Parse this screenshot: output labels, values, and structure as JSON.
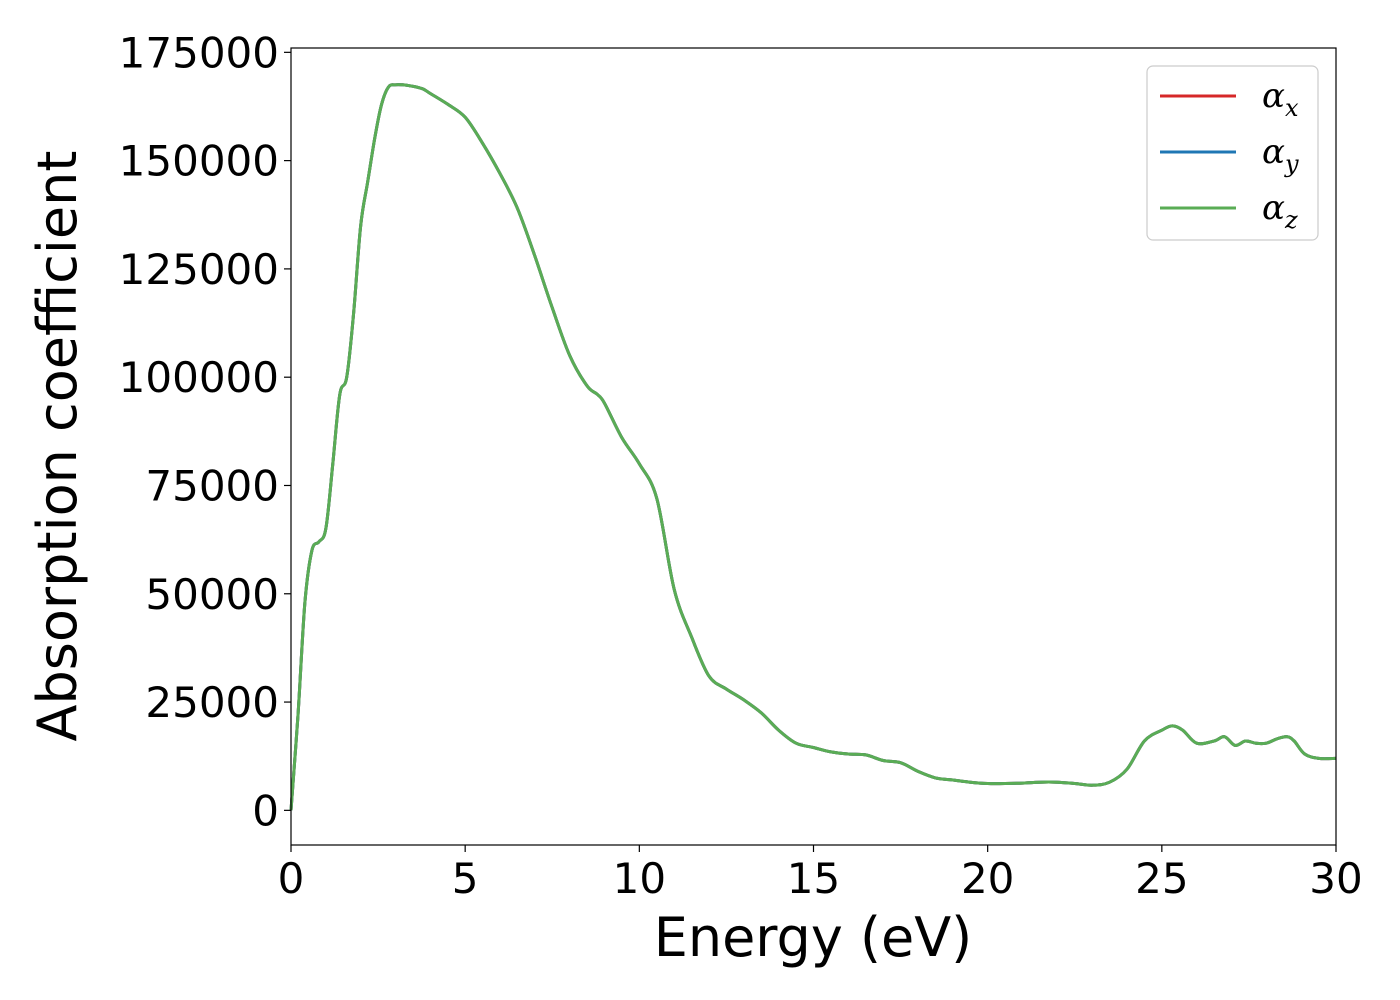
{
  "chart_data": {
    "type": "line",
    "title": "",
    "xlabel": "Energy (eV)",
    "ylabel": "Absorption coefficient",
    "xlim": [
      0,
      30
    ],
    "ylim": [
      -8000,
      176000
    ],
    "xticks": [
      0,
      5,
      10,
      15,
      20,
      25,
      30
    ],
    "xtick_labels": [
      "0",
      "5",
      "10",
      "15",
      "20",
      "25",
      "30"
    ],
    "yticks": [
      0,
      25000,
      50000,
      75000,
      100000,
      125000,
      150000,
      175000
    ],
    "ytick_labels": [
      "0",
      "25000",
      "50000",
      "75000",
      "100000",
      "125000",
      "150000",
      "175000"
    ],
    "grid": false,
    "legend_position": "top-right",
    "x": [
      0,
      0.2,
      0.4,
      0.6,
      0.8,
      1.0,
      1.2,
      1.4,
      1.6,
      1.8,
      2.0,
      2.2,
      2.4,
      2.6,
      2.8,
      3.0,
      3.2,
      3.4,
      3.6,
      3.8,
      4.0,
      4.5,
      5.0,
      5.5,
      6.0,
      6.5,
      7.0,
      7.5,
      8.0,
      8.5,
      8.8,
      9.0,
      9.5,
      10.0,
      10.5,
      11.0,
      11.5,
      12.0,
      12.5,
      13.0,
      13.5,
      14.0,
      14.5,
      15.0,
      15.5,
      16.0,
      16.5,
      17.0,
      17.5,
      18.0,
      18.5,
      19.0,
      19.5,
      20.0,
      20.5,
      21.0,
      21.5,
      22.0,
      22.5,
      23.0,
      23.5,
      24.0,
      24.5,
      25.0,
      25.3,
      25.6,
      26.0,
      26.5,
      26.8,
      27.1,
      27.4,
      27.7,
      28.0,
      28.3,
      28.6,
      28.8,
      29.1,
      29.5,
      30.0
    ],
    "series": [
      {
        "name": "α_x",
        "color": "#d62728",
        "values": [
          0,
          22000,
          48000,
          60000,
          62000,
          65000,
          80000,
          96000,
          100000,
          115000,
          135000,
          145000,
          155000,
          163000,
          167000,
          167500,
          167500,
          167300,
          167000,
          166500,
          165500,
          163000,
          160000,
          154000,
          147000,
          139000,
          128000,
          116000,
          105000,
          98000,
          96000,
          94000,
          86000,
          80000,
          72000,
          51000,
          40000,
          31000,
          28000,
          25500,
          22500,
          18500,
          15500,
          14500,
          13500,
          13000,
          12800,
          11500,
          11000,
          9000,
          7500,
          7000,
          6500,
          6200,
          6200,
          6300,
          6500,
          6500,
          6200,
          5800,
          6500,
          9500,
          16000,
          18500,
          19500,
          18500,
          15500,
          16000,
          17000,
          15000,
          16000,
          15500,
          15500,
          16500,
          17000,
          16000,
          13000,
          12000,
          12000
        ]
      },
      {
        "name": "α_y",
        "color": "#1f77b4",
        "values": [
          0,
          22000,
          48000,
          60000,
          62000,
          65000,
          80000,
          96000,
          100000,
          115000,
          135000,
          145000,
          155000,
          163000,
          167000,
          167500,
          167500,
          167300,
          167000,
          166500,
          165500,
          163000,
          160000,
          154000,
          147000,
          139000,
          128000,
          116000,
          105000,
          98000,
          96000,
          94000,
          86000,
          80000,
          72000,
          51000,
          40000,
          31000,
          28000,
          25500,
          22500,
          18500,
          15500,
          14500,
          13500,
          13000,
          12800,
          11500,
          11000,
          9000,
          7500,
          7000,
          6500,
          6200,
          6200,
          6300,
          6500,
          6500,
          6200,
          5800,
          6500,
          9500,
          16000,
          18500,
          19500,
          18500,
          15500,
          16000,
          17000,
          15000,
          16000,
          15500,
          15500,
          16500,
          17000,
          16000,
          13000,
          12000,
          12000
        ]
      },
      {
        "name": "α_z",
        "color": "#5aac55",
        "values": [
          0,
          22000,
          48000,
          60000,
          62000,
          65000,
          80000,
          96000,
          100000,
          115000,
          135000,
          145000,
          155000,
          163000,
          167000,
          167500,
          167500,
          167300,
          167000,
          166500,
          165500,
          163000,
          160000,
          154000,
          147000,
          139000,
          128000,
          116000,
          105000,
          98000,
          96000,
          94000,
          86000,
          80000,
          72000,
          51000,
          40000,
          31000,
          28000,
          25500,
          22500,
          18500,
          15500,
          14500,
          13500,
          13000,
          12800,
          11500,
          11000,
          9000,
          7500,
          7000,
          6500,
          6200,
          6200,
          6300,
          6500,
          6500,
          6200,
          5800,
          6500,
          9500,
          16000,
          18500,
          19500,
          18500,
          15500,
          16000,
          17000,
          15000,
          16000,
          15500,
          15500,
          16500,
          17000,
          16000,
          13000,
          12000,
          12000
        ]
      }
    ],
    "legend": [
      {
        "symbol": "α",
        "subscript": "x",
        "color": "#d62728"
      },
      {
        "symbol": "α",
        "subscript": "y",
        "color": "#1f77b4"
      },
      {
        "symbol": "α",
        "subscript": "z",
        "color": "#5aac55"
      }
    ]
  }
}
